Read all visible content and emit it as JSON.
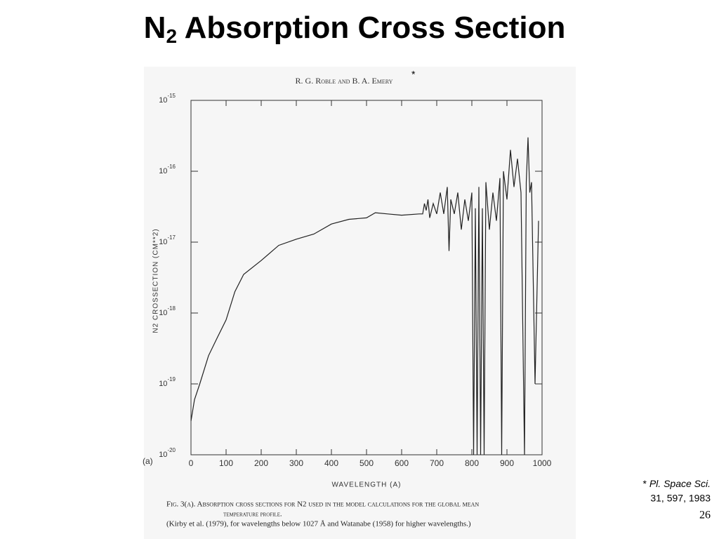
{
  "chart_data": {
    "type": "line",
    "title": {
      "main": "N",
      "sub": "2",
      "rest": " Absorption Cross Section"
    },
    "header": "R. G. Roble and B. A. Emery",
    "header_mark": "*",
    "panel_label": "(a)",
    "x_label": "WAVELENGTH (A)",
    "y_label": "N2 CROSSECTION (CM**2)",
    "log_y": true,
    "color": "#222222",
    "xlim": [
      0,
      1000
    ],
    "xticks": [
      0,
      100,
      200,
      300,
      400,
      500,
      600,
      700,
      800,
      900,
      1000
    ],
    "ylim": [
      1e-20,
      1e-15
    ],
    "yticks": [
      {
        "value": 1e-20,
        "label": "10",
        "exponent": "-20"
      },
      {
        "value": 1e-19,
        "label": "10",
        "exponent": "-19"
      },
      {
        "value": 1e-18,
        "label": "10",
        "exponent": "-18"
      },
      {
        "value": 1e-17,
        "label": "10",
        "exponent": "-17"
      },
      {
        "value": 1e-16,
        "label": "10",
        "exponent": "-16"
      },
      {
        "value": 1e-15,
        "label": "10",
        "exponent": "-15"
      }
    ],
    "x": [
      0,
      10,
      25,
      50,
      75,
      100,
      125,
      150,
      200,
      250,
      300,
      350,
      400,
      450,
      500,
      525,
      560,
      600,
      650,
      660,
      665,
      670,
      675,
      680,
      690,
      700,
      710,
      720,
      730,
      735,
      740,
      750,
      760,
      770,
      780,
      790,
      800,
      805,
      810,
      815,
      820,
      825,
      830,
      835,
      840,
      850,
      860,
      870,
      880,
      885,
      890,
      900,
      910,
      920,
      930,
      940,
      950,
      955,
      960,
      965,
      970,
      980,
      990
    ],
    "values": [
      3e-20,
      6e-20,
      1e-19,
      2.5e-19,
      4.5e-19,
      8e-19,
      2e-18,
      3.5e-18,
      5.5e-18,
      9e-18,
      1.1e-17,
      1.3e-17,
      1.8e-17,
      2.1e-17,
      2.2e-17,
      2.6e-17,
      2.5e-17,
      2.4e-17,
      2.5e-17,
      2.5e-17,
      3.5e-17,
      2.8e-17,
      4e-17,
      2.2e-17,
      3.5e-17,
      2.5e-17,
      5e-17,
      2.5e-17,
      6e-17,
      7.5e-18,
      4e-17,
      2.5e-17,
      5e-17,
      1.5e-17,
      4e-17,
      2e-17,
      5e-17,
      1e-20,
      3e-17,
      1e-20,
      6e-17,
      1e-20,
      3e-17,
      1e-20,
      7e-17,
      1.5e-17,
      5e-17,
      2e-17,
      8e-17,
      1e-20,
      1e-16,
      4e-17,
      2e-16,
      6e-17,
      1.5e-16,
      5e-17,
      1e-20,
      7e-17,
      3e-16,
      5e-17,
      7e-17,
      1e-19,
      2e-17
    ],
    "caption": [
      "Fig. 3(a). Absorption cross sections for N2 used in the model calculations for the global mean",
      "temperature profile.",
      "(Kirby et al. (1979), for wavelengths below 1027 Å and Watanabe (1958) for higher wavelengths.)"
    ],
    "footnote": {
      "mark": "*",
      "journal": "Pl. Space Sci.",
      "ref": "31, 597, 1983"
    },
    "page_number": "26"
  }
}
